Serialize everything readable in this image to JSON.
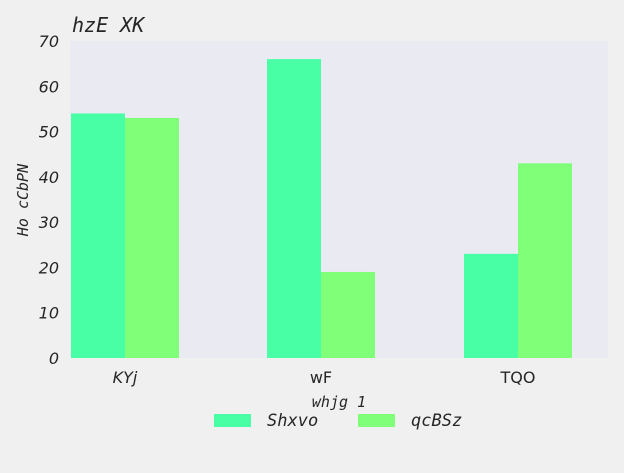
{
  "chart_data": {
    "type": "bar",
    "title": "hzE XK",
    "xlabel": "whjg 1",
    "ylabel": "Ho cCbPN",
    "categories": [
      "KYj",
      "wF",
      "TQO"
    ],
    "category_label_style": [
      "italic",
      "normal",
      "normal"
    ],
    "series": [
      {
        "name": "Shxvo",
        "values": [
          54,
          66,
          23
        ],
        "color": "#48ffa6"
      },
      {
        "name": "qcBSz",
        "values": [
          53,
          19,
          43
        ],
        "color": "#80ff78"
      }
    ],
    "ylim": [
      0,
      70
    ],
    "yticks": [
      0,
      10,
      20,
      30,
      40,
      50,
      60,
      70
    ],
    "plot_background": "#eaeaf2",
    "page_background": "#f0f0f0",
    "grid": false,
    "legend_position": "bottom-center"
  }
}
